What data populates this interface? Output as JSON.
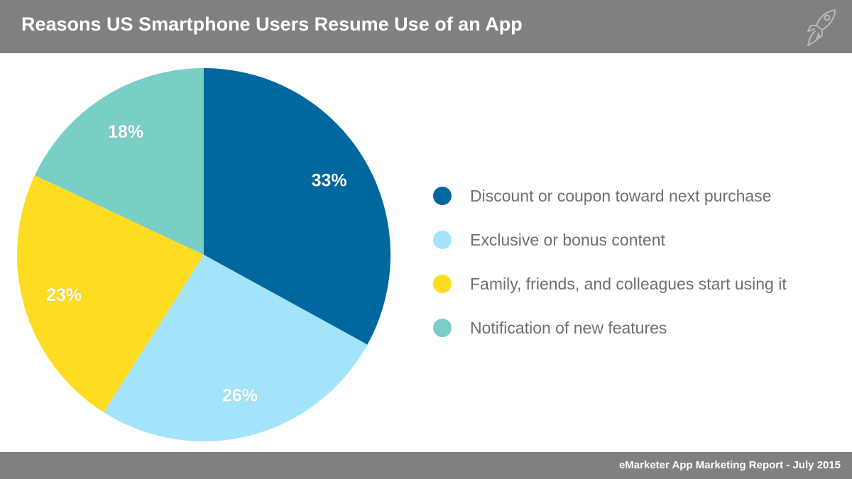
{
  "header": {
    "title": "Reasons US Smartphone Users Resume Use of an App",
    "logo_icon": "rocket-icon"
  },
  "chart_data": {
    "type": "pie",
    "title": "Reasons US Smartphone Users Resume Use of an App",
    "slices": [
      {
        "label": "Discount or coupon toward next purchase",
        "value": 33,
        "display": "33%",
        "color": "#00689f"
      },
      {
        "label": "Exclusive or bonus content",
        "value": 26,
        "display": "26%",
        "color": "#a4e4fb"
      },
      {
        "label": "Family, friends, and colleagues start using it",
        "value": 23,
        "display": "23%",
        "color": "#fddc22"
      },
      {
        "label": "Notification of new features",
        "value": 18,
        "display": "18%",
        "color": "#79cec6"
      }
    ],
    "legend_position": "right"
  },
  "footer": {
    "source": "eMarketer App Marketing Report - July 2015"
  }
}
